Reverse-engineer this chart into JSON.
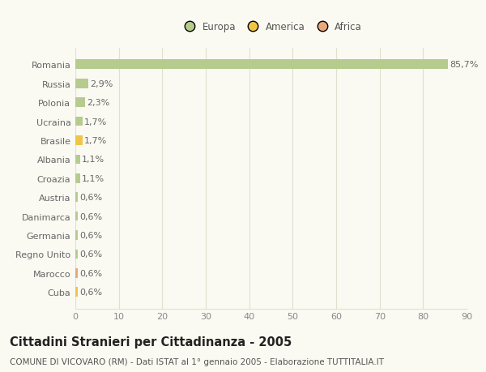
{
  "countries": [
    "Romania",
    "Russia",
    "Polonia",
    "Ucraina",
    "Brasile",
    "Albania",
    "Croazia",
    "Austria",
    "Danimarca",
    "Germania",
    "Regno Unito",
    "Marocco",
    "Cuba"
  ],
  "values": [
    85.7,
    2.9,
    2.3,
    1.7,
    1.7,
    1.1,
    1.1,
    0.6,
    0.6,
    0.6,
    0.6,
    0.6,
    0.6
  ],
  "labels": [
    "85,7%",
    "2,9%",
    "2,3%",
    "1,7%",
    "1,7%",
    "1,1%",
    "1,1%",
    "0,6%",
    "0,6%",
    "0,6%",
    "0,6%",
    "0,6%",
    "0,6%"
  ],
  "continent": [
    "Europa",
    "Europa",
    "Europa",
    "Europa",
    "America",
    "Europa",
    "Europa",
    "Europa",
    "Europa",
    "Europa",
    "Europa",
    "Africa",
    "America"
  ],
  "colors": {
    "Europa": "#b5cc8e",
    "America": "#f0c545",
    "Africa": "#e8a878"
  },
  "legend": [
    "Europa",
    "America",
    "Africa"
  ],
  "legend_colors": [
    "#b5cc8e",
    "#f0c545",
    "#e8a878"
  ],
  "title": "Cittadini Stranieri per Cittadinanza - 2005",
  "subtitle": "COMUNE DI VICOVARO (RM) - Dati ISTAT al 1° gennaio 2005 - Elaborazione TUTTITALIA.IT",
  "xlim": [
    0,
    90
  ],
  "xticks": [
    0,
    10,
    20,
    30,
    40,
    50,
    60,
    70,
    80,
    90
  ],
  "background_color": "#fafaf2",
  "grid_color": "#e0e0d0",
  "bar_height": 0.5,
  "label_fontsize": 8,
  "tick_label_fontsize": 8,
  "title_fontsize": 10.5,
  "subtitle_fontsize": 7.5
}
